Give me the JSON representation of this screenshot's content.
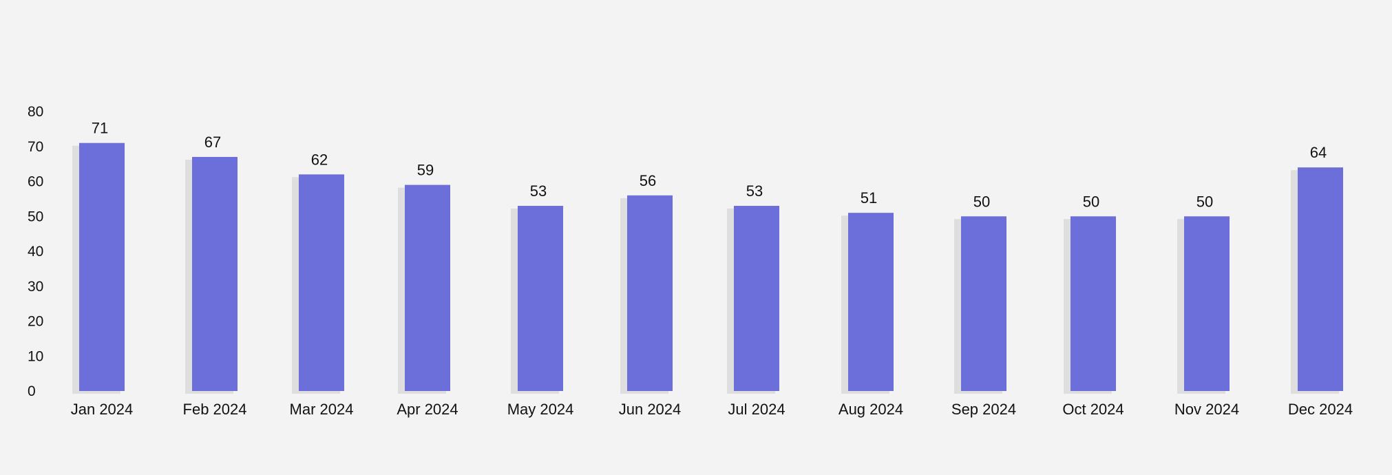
{
  "chart_data": {
    "type": "bar",
    "title": "",
    "xlabel": "",
    "ylabel": "",
    "categories": [
      "Jan 2024",
      "Feb 2024",
      "Mar 2024",
      "Apr 2024",
      "May 2024",
      "Jun 2024",
      "Jul 2024",
      "Aug 2024",
      "Sep 2024",
      "Oct 2024",
      "Nov 2024",
      "Dec 2024"
    ],
    "values": [
      71,
      67,
      62,
      59,
      53,
      56,
      53,
      51,
      50,
      50,
      50,
      64
    ],
    "ylim": [
      0,
      80
    ],
    "yticks": [
      0,
      10,
      20,
      30,
      40,
      50,
      60,
      70,
      80
    ],
    "grid": false,
    "legend": "none",
    "bar_color": "#6c6fd9",
    "shadow_color": "#d9d9d9",
    "background": "#f3f3f3"
  }
}
